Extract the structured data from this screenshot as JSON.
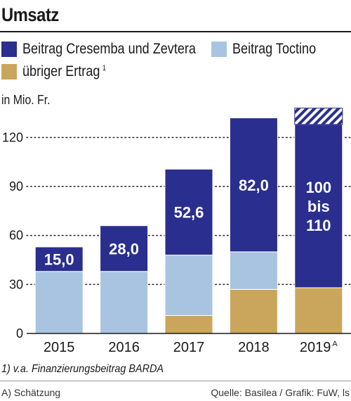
{
  "title": "Umsatz",
  "unit_label": "in Mio. Fr.",
  "legend": [
    {
      "label": "Beitrag Cresemba und Zevtera",
      "color": "#2a2e8f",
      "sup": ""
    },
    {
      "label": "Beitrag Toctino",
      "color": "#a9c4e1",
      "sup": ""
    },
    {
      "label": "übriger Ertrag",
      "color": "#c9a65b",
      "sup": "1"
    }
  ],
  "footnote": "1) v.a. Finanzierungsbeitrag BARDA",
  "estimate_note": "A) Schätzung",
  "source": "Quelle: Basilea / Grafik: FuW, ls",
  "chart_data": {
    "type": "bar",
    "stacked": true,
    "categories": [
      "2015",
      "2016",
      "2017",
      "2018",
      "2019"
    ],
    "category_superscripts": [
      "",
      "",
      "",
      "",
      "A"
    ],
    "series": [
      {
        "name": "übriger Ertrag",
        "color": "#c9a65b",
        "values": [
          0,
          0,
          11,
          27,
          28
        ]
      },
      {
        "name": "Beitrag Toctino",
        "color": "#a9c4e1",
        "values": [
          38,
          38,
          37,
          23,
          0
        ]
      },
      {
        "name": "Beitrag Cresemba und Zevtera",
        "color": "#2a2e8f",
        "values": [
          15.0,
          28.0,
          52.6,
          82.0,
          100
        ]
      }
    ],
    "bar_labels": [
      "15,0",
      "28,0",
      "52,6",
      "82,0",
      "100\nbis\n110"
    ],
    "range_extension": {
      "category": "2019",
      "from": 128,
      "to": 138,
      "pattern": "hatched"
    },
    "yticks": [
      0,
      30,
      60,
      90,
      120
    ],
    "ylim": [
      0,
      140
    ],
    "grid": "dotted"
  }
}
